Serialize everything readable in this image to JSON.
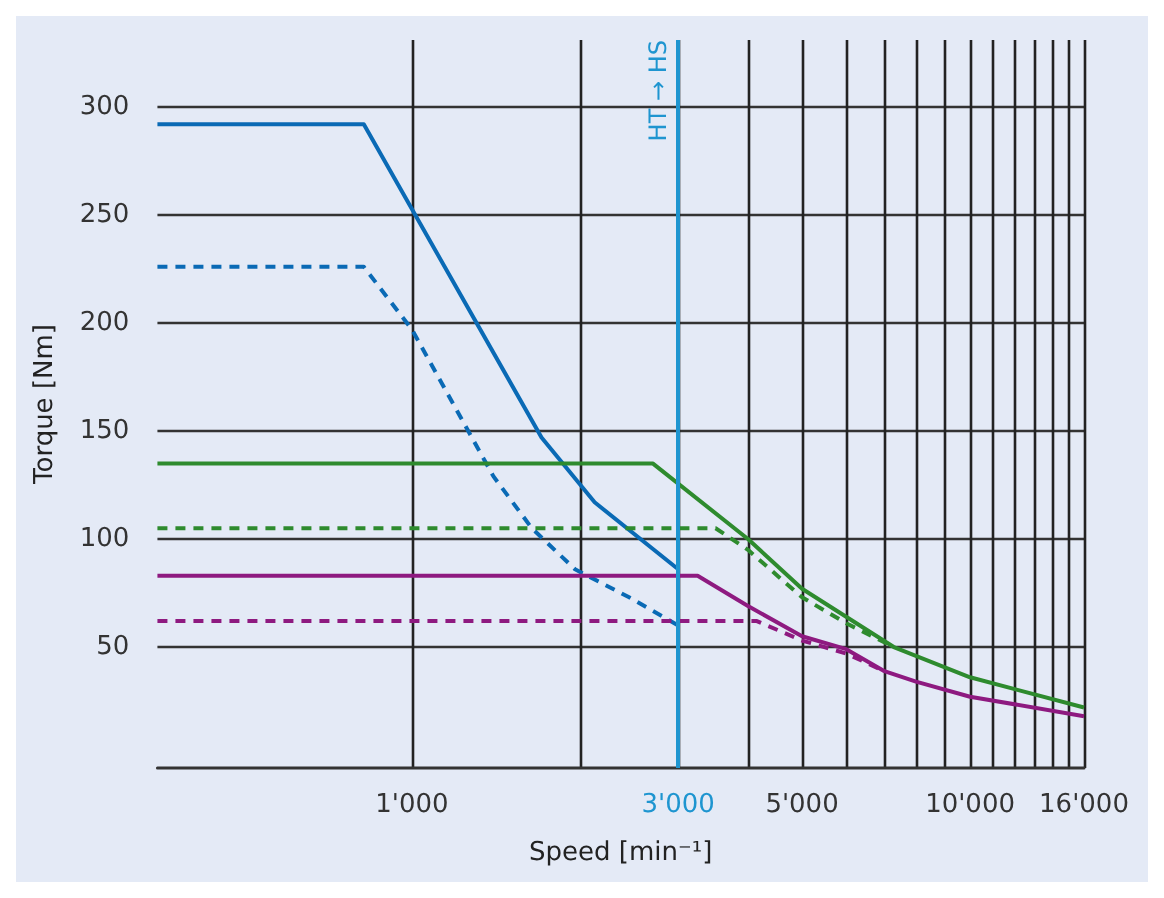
{
  "chart_data": {
    "type": "line",
    "xlabel": "Speed [min⁻¹]",
    "ylabel": "Torque [Nm]",
    "xlim": [
      350,
      16000
    ],
    "ylim": [
      -6,
      331
    ],
    "xticks": [
      {
        "value": 1000,
        "label": "1'000"
      },
      {
        "value": 2000,
        "label": null
      },
      {
        "value": 3000,
        "label": "3'000"
      },
      {
        "value": 4000,
        "label": null
      },
      {
        "value": 5000,
        "label": "5'000"
      },
      {
        "value": 6000,
        "label": null
      },
      {
        "value": 7000,
        "label": null
      },
      {
        "value": 8000,
        "label": null
      },
      {
        "value": 9000,
        "label": null
      },
      {
        "value": 10000,
        "label": "10'000"
      },
      {
        "value": 11000,
        "label": null
      },
      {
        "value": 12000,
        "label": null
      },
      {
        "value": 13000,
        "label": null
      },
      {
        "value": 14000,
        "label": null
      },
      {
        "value": 15000,
        "label": null
      },
      {
        "value": 16000,
        "label": "16'000"
      }
    ],
    "yticks": [
      50,
      100,
      150,
      200,
      250,
      300
    ],
    "grid": true,
    "log": "x",
    "marker": "none",
    "ref_lines": [
      {
        "axis": "x",
        "value": 3000,
        "label": "HT → HS",
        "color": "#1e95d0"
      }
    ],
    "series": [
      {
        "color": "#0a6ab5",
        "line_style": "solid",
        "x": [
          350,
          820,
          1707,
          2125,
          3000
        ],
        "values": [
          292,
          292,
          147,
          117,
          86
        ]
      },
      {
        "color": "#0a6ab5",
        "line_style": "dashed",
        "x": [
          350,
          820,
          1000,
          1400,
          1640,
          1960,
          2450,
          3000
        ],
        "values": [
          226,
          226,
          197,
          129,
          105,
          86,
          73,
          60
        ]
      },
      {
        "color": "#2e8b2e",
        "line_style": "solid",
        "x": [
          350,
          2700,
          4000,
          5000,
          7300,
          10000,
          16000
        ],
        "values": [
          135,
          135,
          100,
          77,
          50,
          36,
          22
        ]
      },
      {
        "color": "#2e8b2e",
        "line_style": "dashed",
        "x": [
          350,
          3500,
          4000,
          5000,
          6000,
          7300
        ],
        "values": [
          105,
          105,
          95,
          73,
          61,
          50
        ]
      },
      {
        "color": "#8e1a80",
        "line_style": "solid",
        "x": [
          350,
          3250,
          4000,
          5000,
          6000,
          7000,
          8000,
          10000,
          16000
        ],
        "values": [
          83,
          83,
          69,
          55,
          49,
          39,
          34,
          27,
          18
        ]
      },
      {
        "color": "#8e1a80",
        "line_style": "dashed",
        "x": [
          350,
          4150,
          5000,
          6000,
          7000
        ],
        "values": [
          62,
          62,
          53,
          47,
          39
        ]
      }
    ]
  }
}
